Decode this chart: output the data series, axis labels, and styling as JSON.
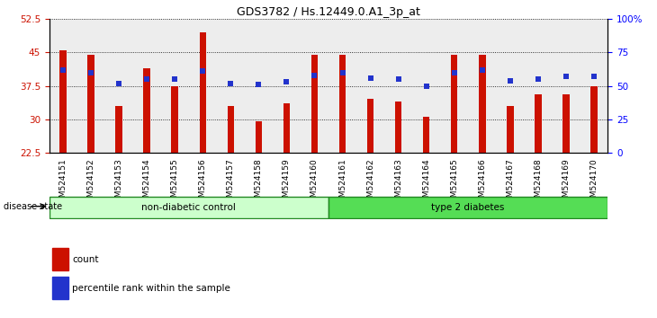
{
  "title": "GDS3782 / Hs.12449.0.A1_3p_at",
  "samples": [
    "GSM524151",
    "GSM524152",
    "GSM524153",
    "GSM524154",
    "GSM524155",
    "GSM524156",
    "GSM524157",
    "GSM524158",
    "GSM524159",
    "GSM524160",
    "GSM524161",
    "GSM524162",
    "GSM524163",
    "GSM524164",
    "GSM524165",
    "GSM524166",
    "GSM524167",
    "GSM524168",
    "GSM524169",
    "GSM524170"
  ],
  "counts": [
    45.5,
    44.5,
    33.0,
    41.5,
    37.5,
    49.5,
    33.0,
    29.5,
    33.5,
    44.5,
    44.5,
    34.5,
    34.0,
    30.5,
    44.5,
    44.5,
    33.0,
    35.5,
    35.5,
    37.5
  ],
  "percentile": [
    62,
    60,
    52,
    55,
    55,
    61,
    52,
    51,
    53,
    58,
    60,
    56,
    55,
    50,
    60,
    62,
    54,
    55,
    57,
    57
  ],
  "ylim_left": [
    22.5,
    52.5
  ],
  "ylim_right": [
    0,
    100
  ],
  "yticks_left": [
    22.5,
    30,
    37.5,
    45,
    52.5
  ],
  "yticks_right": [
    0,
    25,
    50,
    75,
    100
  ],
  "ytick_labels_right": [
    "0",
    "25",
    "50",
    "75",
    "100%"
  ],
  "group1_count": 10,
  "group1_label": "non-diabetic control",
  "group2_label": "type 2 diabetes",
  "group1_color": "#ccffcc",
  "group2_color": "#55dd55",
  "bar_color": "#cc1100",
  "dot_color": "#2233cc",
  "bar_width": 0.25,
  "legend_count_label": "count",
  "legend_pct_label": "percentile rank within the sample",
  "col_bg_color": "#cccccc"
}
